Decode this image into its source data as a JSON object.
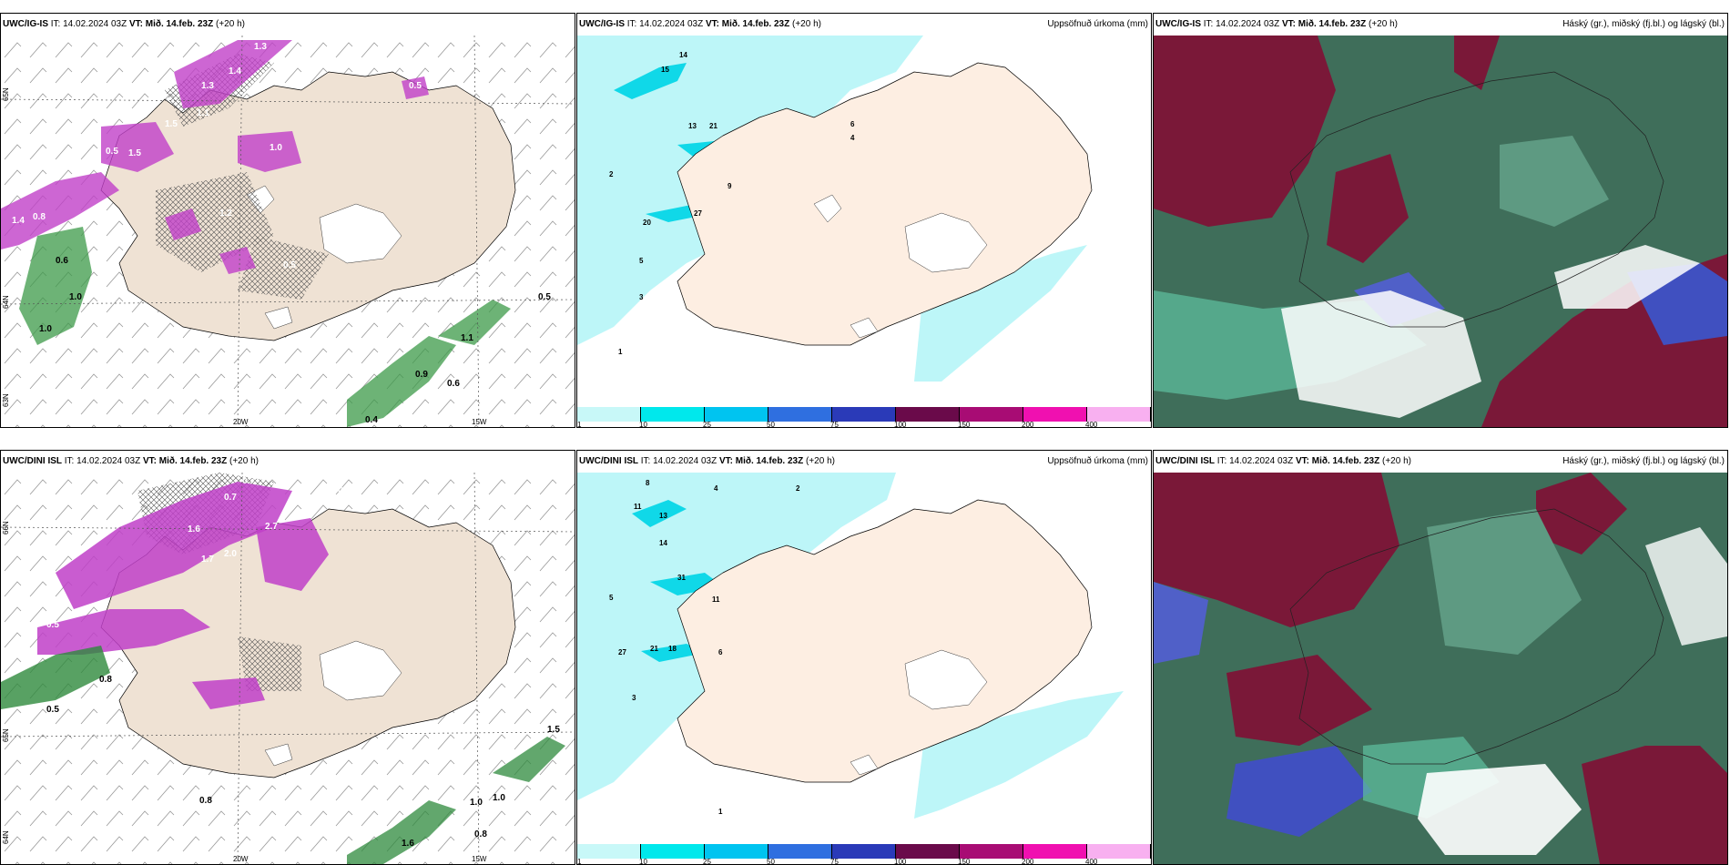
{
  "figure": {
    "top_row": {
      "left": {
        "model": "UWC/IG-IS",
        "it": "IT: 14.02.2024 03Z",
        "vt": "VT: Mið. 14.feb. 23Z",
        "lead": "(+20 h)"
      },
      "middle": {
        "model": "UWC/IG-IS",
        "it": "IT: 14.02.2024 03Z",
        "vt": "VT: Mið. 14.feb. 23Z",
        "lead": "(+20 h)",
        "right_title": "Uppsöfnuð úrkoma (mm)"
      },
      "right": {
        "model": "UWC/IG-IS",
        "it": "IT: 14.02.2024 03Z",
        "vt": "VT: Mið. 14.feb. 23Z",
        "lead": "(+20 h)",
        "right_title": "Háský (gr.), miðský (fj.bl.) og lágský (bl.)"
      }
    },
    "bottom_row": {
      "left": {
        "model": "UWC/DINI ISL",
        "it": "IT: 14.02.2024 03Z",
        "vt": "VT: Mið. 14.feb. 23Z",
        "lead": "(+20 h)"
      },
      "middle": {
        "model": "UWC/DINI ISL",
        "it": "IT: 14.02.2024 03Z",
        "vt": "VT: Mið. 14.feb. 23Z",
        "lead": "(+20 h)",
        "right_title": "Uppsöfnuð úrkoma (mm)"
      },
      "right": {
        "model": "UWC/DINI ISL",
        "it": "IT: 14.02.2024 03Z",
        "vt": "VT: Mið. 14.feb. 23Z",
        "lead": "(+20 h)",
        "right_title": "Háský (gr.), miðský (fj.bl.) og lágský (bl.)"
      }
    }
  },
  "axes": {
    "lon_labels": [
      "20W",
      "15W"
    ],
    "lat_labels_top": [
      "65N",
      "64N",
      "63N"
    ],
    "lat_labels_bottom": [
      "66N",
      "65N",
      "64N"
    ]
  },
  "colorbar": {
    "ticks": [
      "1",
      "10",
      "25",
      "50",
      "75",
      "100",
      "150",
      "200",
      "400"
    ],
    "colors": [
      "#c8f8f8",
      "#00e8ec",
      "#00c4f0",
      "#2f6fe0",
      "#2a3ab8",
      "#6a0a4a",
      "#a80c74",
      "#f010b0",
      "#f8b0f0"
    ]
  },
  "precip_values_top_left": [
    "1.3",
    "1.4",
    "1.3",
    "1.1",
    "1.5",
    "0.3",
    "0.5",
    "1.4",
    "0.8",
    "0.5",
    "1.5",
    "1.0",
    "1.2",
    "0.5",
    "0.6",
    "1.0",
    "1.0",
    "1.1",
    "0.5",
    "0.6",
    "0.9",
    "0.4"
  ],
  "precip_values_bottom_left": [
    "0.7",
    "0.4",
    "0.3",
    "0.7",
    "1.6",
    "2.7",
    "1.7",
    "2.0",
    "0.5",
    "0.8",
    "0.5",
    "1.0",
    "1.0",
    "0.8",
    "1.6",
    "0.8",
    "1.5"
  ],
  "accum_top_middle": [
    "14",
    "15",
    "13",
    "21",
    "27",
    "20",
    "9",
    "6",
    "5",
    "4",
    "3",
    "2",
    "1"
  ],
  "accum_bottom_middle": [
    "8",
    "11",
    "13",
    "14",
    "31",
    "11",
    "21",
    "27",
    "18",
    "6",
    "5",
    "4",
    "3",
    "2",
    "1"
  ]
}
